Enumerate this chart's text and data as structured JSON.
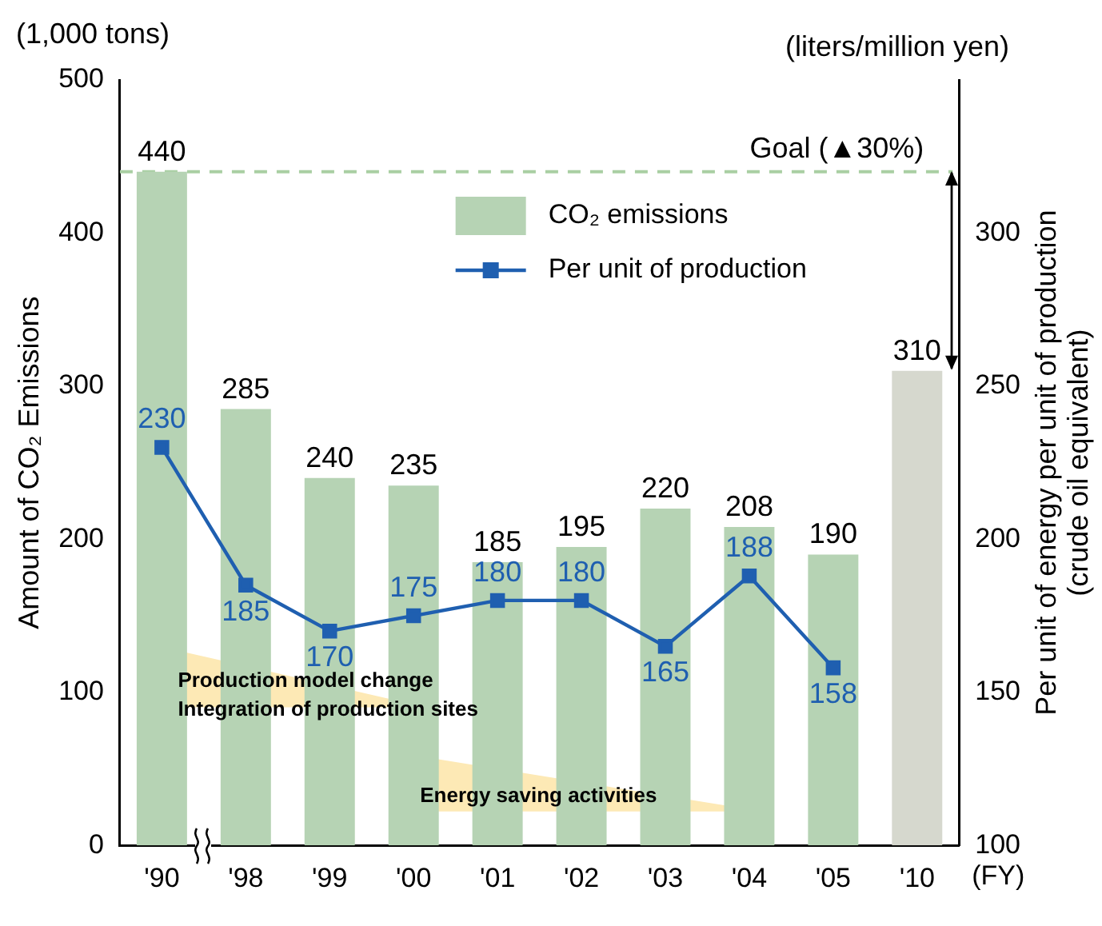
{
  "chart_data": {
    "type": "bar",
    "categories": [
      "'90",
      "'98",
      "'99",
      "'00",
      "'01",
      "'02",
      "'03",
      "'04",
      "'05",
      "'10"
    ],
    "series": [
      {
        "name": "CO₂ emissions",
        "colors": [
          "#b6d3b4",
          "#b6d3b4",
          "#b6d3b4",
          "#b6d3b4",
          "#b6d3b4",
          "#b6d3b4",
          "#b6d3b4",
          "#b6d3b4",
          "#b6d3b4",
          "#d6d8ce"
        ],
        "values": [
          440,
          285,
          240,
          235,
          185,
          195,
          220,
          208,
          190,
          310
        ]
      },
      {
        "name": "Per unit of production",
        "type": "line",
        "axis": "y2",
        "color": "#1f5fb0",
        "marker": "square",
        "values": [
          230,
          185,
          170,
          175,
          180,
          180,
          165,
          188,
          158,
          null
        ]
      }
    ],
    "ylabel": "Amount of CO₂ Emissions",
    "y2label": "Per unit of energy per unit of production (crude oil equivalent)",
    "xlabel": "(FY)",
    "ylim": [
      0,
      500
    ],
    "yticks": [
      0,
      100,
      200,
      300,
      400,
      500
    ],
    "y2lim": [
      100,
      350
    ],
    "y2ticks": [
      100,
      150,
      200,
      250,
      300
    ],
    "ref_lines": [
      {
        "axis": "y",
        "value": 440,
        "label": "Goal (▲30%)",
        "color": "#a9cfa3",
        "line_style": "dashed"
      }
    ],
    "annotations": [
      "(1,000 tons)",
      "(liters/million yen)",
      "Production model change",
      "Integration of production sites",
      "Energy saving activities"
    ],
    "data_labels": true,
    "legend": "top",
    "grid": false
  }
}
